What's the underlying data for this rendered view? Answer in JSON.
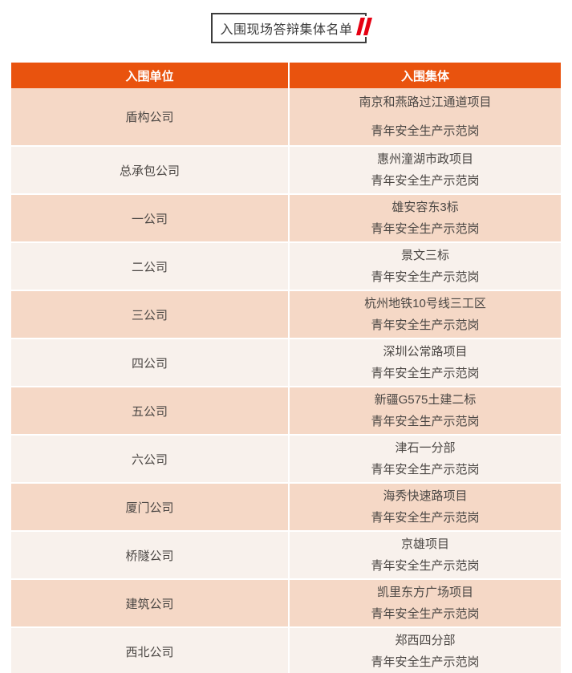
{
  "title": {
    "text": "入围现场答辩集体名单"
  },
  "colors": {
    "header_orange": "#e9530e",
    "row_peach": "#f5d8c6",
    "row_cream": "#f8f1ec",
    "title_border": "#3d3d3d",
    "quote_red": "#e60012",
    "cell_text": "#4b4744"
  },
  "table": {
    "headers": [
      "入围单位",
      "入围集体"
    ],
    "rows": [
      {
        "unit": "盾构公司",
        "collective_line1": "南京和燕路过江通道项目",
        "collective_line2": "青年安全生产示范岗"
      },
      {
        "unit": "总承包公司",
        "collective_line1": "惠州潼湖市政项目",
        "collective_line2": "青年安全生产示范岗"
      },
      {
        "unit": "一公司",
        "collective_line1": "雄安容东3标",
        "collective_line2": "青年安全生产示范岗"
      },
      {
        "unit": "二公司",
        "collective_line1": "景文三标",
        "collective_line2": "青年安全生产示范岗"
      },
      {
        "unit": "三公司",
        "collective_line1": "杭州地铁10号线三工区",
        "collective_line2": "青年安全生产示范岗"
      },
      {
        "unit": "四公司",
        "collective_line1": "深圳公常路项目",
        "collective_line2": "青年安全生产示范岗"
      },
      {
        "unit": "五公司",
        "collective_line1": "新疆G575土建二标",
        "collective_line2": "青年安全生产示范岗"
      },
      {
        "unit": "六公司",
        "collective_line1": "津石一分部",
        "collective_line2": "青年安全生产示范岗"
      },
      {
        "unit": "厦门公司",
        "collective_line1": "海秀快速路项目",
        "collective_line2": "青年安全生产示范岗"
      },
      {
        "unit": "桥隧公司",
        "collective_line1": "京雄项目",
        "collective_line2": "青年安全生产示范岗"
      },
      {
        "unit": "建筑公司",
        "collective_line1": "凯里东方广场项目",
        "collective_line2": "青年安全生产示范岗"
      },
      {
        "unit": "西北公司",
        "collective_line1": "郑西四分部",
        "collective_line2": "青年安全生产示范岗"
      }
    ]
  }
}
